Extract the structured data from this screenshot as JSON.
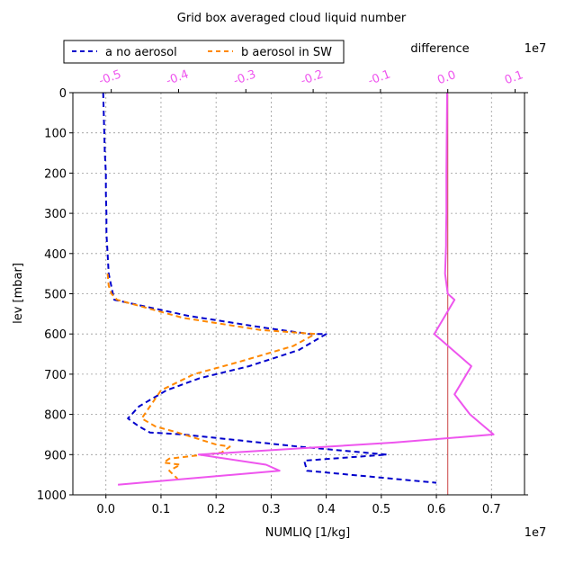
{
  "chart_data": {
    "type": "line",
    "title": "Grid box averaged cloud liquid number",
    "xlabel": "NUMLIQ [1/kg]",
    "ylabel": "lev [mbar]",
    "bottom_axis": {
      "xlim": [
        -0.06,
        0.76
      ],
      "ticks": [
        0.0,
        0.1,
        0.2,
        0.3,
        0.4,
        0.5,
        0.6,
        0.7
      ],
      "tick_labels": [
        "0.0",
        "0.1",
        "0.2",
        "0.3",
        "0.4",
        "0.5",
        "0.6",
        "0.7"
      ],
      "offset_label": "1e7"
    },
    "top_axis": {
      "label": "difference",
      "xlim": [
        -0.557,
        0.114
      ],
      "ticks": [
        -0.5,
        -0.4,
        -0.3,
        -0.2,
        -0.1,
        0.0,
        0.1
      ],
      "tick_labels": [
        "-0.5",
        "-0.4",
        "-0.3",
        "-0.2",
        "-0.1",
        "0.0",
        "0.1"
      ],
      "offset_label": "1e7",
      "color": "#ee55ee"
    },
    "y_axis": {
      "ylim": [
        1000,
        0
      ],
      "inverted": true,
      "ticks": [
        0,
        100,
        200,
        300,
        400,
        500,
        600,
        700,
        800,
        900,
        1000
      ],
      "tick_labels": [
        "0",
        "100",
        "200",
        "300",
        "400",
        "500",
        "600",
        "700",
        "800",
        "900",
        "1000"
      ]
    },
    "grid": true,
    "legend_position": "top-left, above plot",
    "series": [
      {
        "name": "a no aerosol",
        "axis": "bottom",
        "color": "#0000cc",
        "style": "dashed",
        "x": [
          -0.005,
          -0.004,
          -0.003,
          -0.002,
          0.0,
          0.0,
          0.001,
          0.001,
          0.003,
          0.005,
          0.015,
          0.15,
          0.29,
          0.37,
          0.4,
          0.35,
          0.26,
          0.17,
          0.11,
          0.06,
          0.04,
          0.06,
          0.08,
          0.14,
          0.35,
          0.51,
          0.36,
          0.365,
          0.6
        ],
        "y": [
          0,
          50,
          100,
          150,
          200,
          250,
          300,
          350,
          400,
          450,
          515,
          555,
          585,
          600,
          600,
          640,
          680,
          710,
          740,
          780,
          810,
          830,
          845,
          850,
          880,
          900,
          915,
          940,
          970
        ]
      },
      {
        "name": "b aerosol in SW",
        "axis": "bottom",
        "color": "#ff8800",
        "style": "dashed",
        "x": [
          0.003,
          0.005,
          0.01,
          0.02,
          0.14,
          0.28,
          0.38,
          0.34,
          0.24,
          0.16,
          0.1,
          0.08,
          0.065,
          0.09,
          0.13,
          0.2,
          0.225,
          0.21,
          0.115,
          0.105,
          0.135,
          0.115,
          0.13
        ],
        "y": [
          450,
          480,
          500,
          515,
          560,
          590,
          600,
          630,
          670,
          700,
          740,
          780,
          810,
          830,
          845,
          875,
          880,
          895,
          910,
          920,
          925,
          940,
          960
        ]
      },
      {
        "name": "",
        "label_ref": "difference",
        "axis": "top",
        "color": "#ee55ee",
        "style": "solid",
        "x": [
          -0.001,
          -0.0015,
          -0.002,
          -0.002,
          -0.0025,
          -0.0025,
          -0.003,
          -0.004,
          0.0,
          0.01,
          -0.02,
          0.035,
          0.01,
          0.033,
          0.068,
          -0.08,
          -0.37,
          -0.27,
          -0.25,
          -0.49
        ],
        "y": [
          0,
          100,
          200,
          300,
          350,
          380,
          400,
          450,
          500,
          515,
          600,
          680,
          750,
          800,
          850,
          870,
          900,
          925,
          940,
          975
        ]
      }
    ],
    "reference_line": {
      "axis": "top",
      "x": 0.0,
      "color": "#cc4444"
    }
  }
}
